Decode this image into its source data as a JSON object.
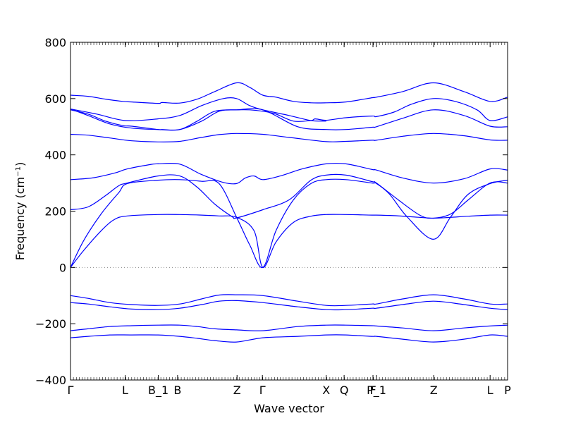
{
  "chart_data": {
    "type": "line",
    "xlabel": "Wave vector",
    "ylabel": "Frequency (cm⁻¹)",
    "ylim": [
      -400,
      800
    ],
    "y_ticks": [
      -400,
      -200,
      0,
      200,
      400,
      600,
      800
    ],
    "y_tick_labels": [
      "−400",
      "−200",
      "0",
      "200",
      "400",
      "600",
      "800"
    ],
    "xlim": [
      0,
      1
    ],
    "x_ticks": [
      {
        "pos": 0.0,
        "label": "Γ"
      },
      {
        "pos": 0.125,
        "label": "L"
      },
      {
        "pos": 0.201,
        "label": "B_1"
      },
      {
        "pos": 0.245,
        "label": "B"
      },
      {
        "pos": 0.381,
        "label": "Z"
      },
      {
        "pos": 0.439,
        "label": "Γ"
      },
      {
        "pos": 0.585,
        "label": "X"
      },
      {
        "pos": 0.626,
        "label": "Q"
      },
      {
        "pos": 0.692,
        "label": "F"
      },
      {
        "pos": 0.7,
        "label": "P_1"
      },
      {
        "pos": 0.831,
        "label": "Z"
      },
      {
        "pos": 0.96,
        "label": "L"
      },
      {
        "pos": 1.0,
        "label": "P"
      }
    ],
    "zero_line": {
      "y": 0,
      "style": "dotted",
      "color": "#888888"
    },
    "line_color": "#0000ff",
    "series": [
      {
        "x": [
          0,
          0.04,
          0.09,
          0.14,
          0.2,
          0.25,
          0.29,
          0.33,
          0.38,
          0.44,
          0.52,
          0.585,
          0.63,
          0.69,
          0.7,
          0.76,
          0.83,
          0.9,
          0.96,
          1.0
        ],
        "values": [
          -250,
          -245,
          -240,
          -240,
          -240,
          -245,
          -252,
          -260,
          -265,
          -250,
          -245,
          -240,
          -240,
          -245,
          -245,
          -255,
          -265,
          -255,
          -240,
          -245
        ]
      },
      {
        "x": [
          0,
          0.04,
          0.09,
          0.14,
          0.2,
          0.25,
          0.29,
          0.33,
          0.38,
          0.44,
          0.52,
          0.585,
          0.63,
          0.69,
          0.7,
          0.76,
          0.83,
          0.9,
          0.96,
          1.0
        ],
        "values": [
          -225,
          -218,
          -210,
          -207,
          -205,
          -205,
          -210,
          -218,
          -222,
          -225,
          -210,
          -205,
          -205,
          -207,
          -208,
          -215,
          -225,
          -215,
          -208,
          -205
        ]
      },
      {
        "x": [
          0,
          0.04,
          0.09,
          0.14,
          0.2,
          0.25,
          0.3,
          0.34,
          0.38,
          0.44,
          0.52,
          0.585,
          0.63,
          0.69,
          0.7,
          0.76,
          0.83,
          0.9,
          0.96,
          1.0
        ],
        "values": [
          -125,
          -130,
          -140,
          -148,
          -150,
          -145,
          -132,
          -120,
          -118,
          -125,
          -140,
          -150,
          -150,
          -145,
          -145,
          -132,
          -120,
          -132,
          -145,
          -150
        ]
      },
      {
        "x": [
          0,
          0.04,
          0.09,
          0.14,
          0.2,
          0.25,
          0.3,
          0.34,
          0.38,
          0.44,
          0.52,
          0.585,
          0.63,
          0.69,
          0.7,
          0.76,
          0.83,
          0.9,
          0.96,
          1.0
        ],
        "values": [
          -100,
          -110,
          -125,
          -132,
          -135,
          -130,
          -112,
          -98,
          -97,
          -100,
          -120,
          -135,
          -135,
          -130,
          -130,
          -112,
          -97,
          -112,
          -130,
          -130
        ]
      },
      {
        "x": [
          0,
          0.03,
          0.07,
          0.1,
          0.13,
          0.2,
          0.25,
          0.3,
          0.34,
          0.38,
          0.42,
          0.44,
          0.47,
          0.51,
          0.55,
          0.585,
          0.63,
          0.69,
          0.7,
          0.74,
          0.78,
          0.83,
          0.87,
          0.91,
          0.96,
          1.0
        ],
        "values": [
          0,
          60,
          130,
          170,
          183,
          188,
          188,
          186,
          183,
          178,
          130,
          0,
          90,
          160,
          182,
          188,
          188,
          186,
          186,
          184,
          180,
          175,
          178,
          182,
          186,
          186
        ]
      },
      {
        "x": [
          0,
          0.03,
          0.07,
          0.11,
          0.13,
          0.2,
          0.25,
          0.3,
          0.34,
          0.38,
          0.41,
          0.44,
          0.47,
          0.51,
          0.55,
          0.585,
          0.63,
          0.69,
          0.7,
          0.73,
          0.77,
          0.83,
          0.87,
          0.91,
          0.96,
          1.0
        ],
        "values": [
          0,
          95,
          190,
          265,
          298,
          310,
          312,
          306,
          298,
          178,
          80,
          0,
          130,
          240,
          298,
          312,
          312,
          300,
          298,
          260,
          180,
          100,
          180,
          260,
          298,
          310
        ]
      },
      {
        "x": [
          0,
          0.04,
          0.08,
          0.11,
          0.13,
          0.2,
          0.25,
          0.29,
          0.33,
          0.37,
          0.38,
          0.44,
          0.5,
          0.55,
          0.585,
          0.63,
          0.69,
          0.7,
          0.75,
          0.8,
          0.83,
          0.87,
          0.91,
          0.96,
          1.0
        ],
        "values": [
          205,
          215,
          255,
          290,
          300,
          325,
          325,
          285,
          225,
          180,
          176,
          205,
          240,
          310,
          328,
          328,
          305,
          300,
          240,
          185,
          175,
          190,
          240,
          300,
          300
        ]
      },
      {
        "x": [
          0,
          0.05,
          0.1,
          0.13,
          0.18,
          0.2,
          0.25,
          0.3,
          0.35,
          0.38,
          0.4,
          0.42,
          0.44,
          0.48,
          0.53,
          0.585,
          0.63,
          0.69,
          0.7,
          0.76,
          0.83,
          0.9,
          0.96,
          1.0
        ],
        "values": [
          312,
          318,
          335,
          350,
          365,
          368,
          367,
          330,
          302,
          298,
          318,
          325,
          312,
          325,
          350,
          368,
          368,
          348,
          346,
          318,
          300,
          315,
          350,
          346
        ]
      },
      {
        "x": [
          0,
          0.04,
          0.09,
          0.14,
          0.2,
          0.25,
          0.3,
          0.34,
          0.38,
          0.44,
          0.5,
          0.585,
          0.63,
          0.69,
          0.7,
          0.76,
          0.83,
          0.9,
          0.96,
          1.0
        ],
        "values": [
          473,
          470,
          460,
          450,
          446,
          448,
          462,
          472,
          476,
          473,
          462,
          447,
          448,
          452,
          452,
          466,
          476,
          468,
          453,
          452
        ]
      },
      {
        "x": [
          0,
          0.04,
          0.09,
          0.14,
          0.2,
          0.25,
          0.3,
          0.34,
          0.38,
          0.44,
          0.52,
          0.585,
          0.63,
          0.69,
          0.7,
          0.76,
          0.83,
          0.9,
          0.96,
          1.0
        ],
        "values": [
          563,
          540,
          510,
          495,
          490,
          490,
          520,
          555,
          560,
          560,
          500,
          490,
          490,
          498,
          500,
          530,
          560,
          540,
          502,
          500
        ]
      },
      {
        "x": [
          0,
          0.04,
          0.08,
          0.12,
          0.14,
          0.2,
          0.21,
          0.25,
          0.29,
          0.33,
          0.38,
          0.41,
          0.44,
          0.47,
          0.51,
          0.55,
          0.56,
          0.585,
          0.63,
          0.69,
          0.7,
          0.74,
          0.78,
          0.83,
          0.88,
          0.93,
          0.96,
          1.0
        ],
        "values": [
          560,
          545,
          520,
          504,
          502,
          490,
          490,
          490,
          520,
          555,
          560,
          560,
          555,
          545,
          520,
          522,
          528,
          523,
          532,
          538,
          536,
          552,
          580,
          600,
          590,
          560,
          522,
          535
        ]
      },
      {
        "x": [
          0,
          0.04,
          0.08,
          0.12,
          0.14,
          0.2,
          0.21,
          0.25,
          0.29,
          0.33,
          0.38,
          0.41,
          0.44,
          0.47,
          0.51,
          0.55,
          0.585,
          0.63,
          0.69,
          0.7,
          0.76,
          0.83,
          0.9,
          0.96,
          1.0
        ],
        "values": [
          612,
          608,
          598,
          590,
          588,
          583,
          586,
          584,
          598,
          625,
          656,
          640,
          612,
          605,
          590,
          585,
          585,
          588,
          603,
          605,
          625,
          656,
          625,
          590,
          605
        ]
      },
      {
        "x": [
          0,
          0.06,
          0.125,
          0.2,
          0.25,
          0.3,
          0.35,
          0.38,
          0.41,
          0.44,
          0.5,
          0.55,
          0.585
        ],
        "values": [
          563,
          545,
          522,
          528,
          540,
          575,
          600,
          600,
          575,
          560,
          540,
          522,
          520
        ]
      }
    ]
  }
}
